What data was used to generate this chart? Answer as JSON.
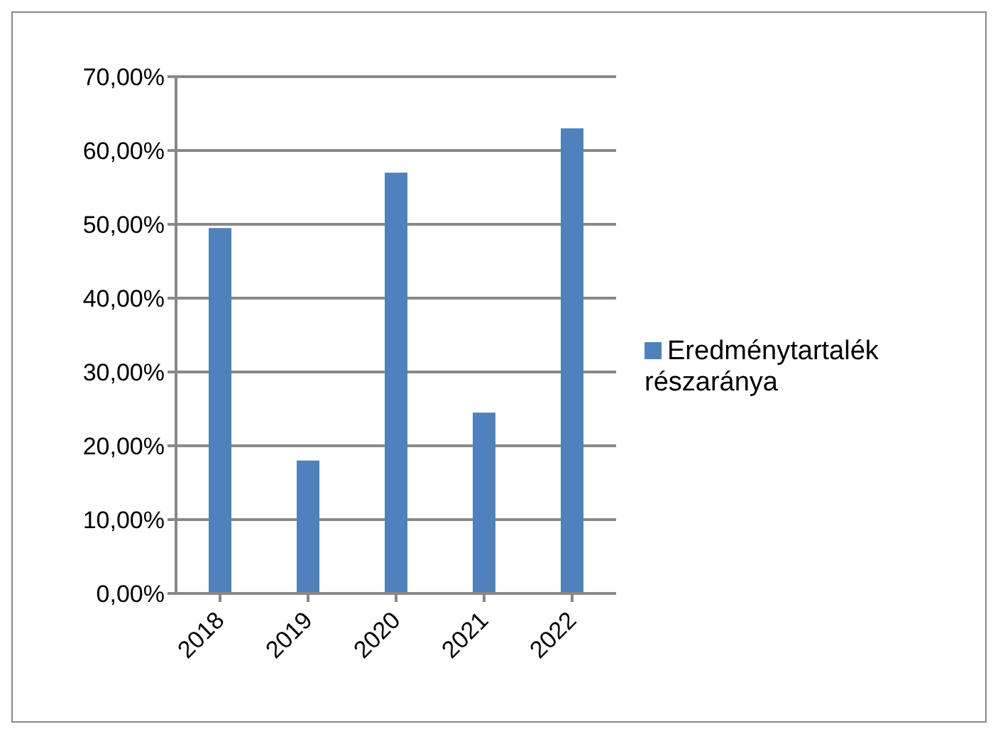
{
  "chart_data": {
    "type": "bar",
    "categories": [
      "2018",
      "2019",
      "2020",
      "2021",
      "2022"
    ],
    "series": [
      {
        "name": "Eredménytartalék részaránya",
        "color": "#4f81bd",
        "values": [
          49.5,
          18,
          57,
          24.5,
          63
        ]
      }
    ],
    "ylim": [
      0,
      70
    ],
    "yticks": [
      {
        "value": 0,
        "label": "0,00%"
      },
      {
        "value": 10,
        "label": "10,00%"
      },
      {
        "value": 20,
        "label": "20,00%"
      },
      {
        "value": 30,
        "label": "30,00%"
      },
      {
        "value": 40,
        "label": "40,00%"
      },
      {
        "value": 50,
        "label": "50,00%"
      },
      {
        "value": 60,
        "label": "60,00%"
      },
      {
        "value": 70,
        "label": "70,00%"
      }
    ],
    "grid": "y",
    "legend": "right"
  }
}
